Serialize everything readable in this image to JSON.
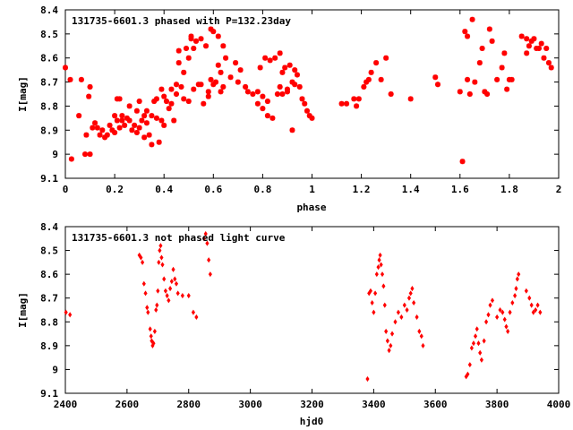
{
  "colors": {
    "points": "#ff0000"
  },
  "chart_data": [
    {
      "type": "scatter",
      "title": "131735-6601.3 phased with P=132.23day",
      "xlabel": "phase",
      "ylabel": "I[mag]",
      "xlim": [
        0,
        2
      ],
      "ylim": [
        9.1,
        8.4
      ],
      "y_inverted": true,
      "grid": false,
      "xticks": [
        0,
        0.2,
        0.4,
        0.6,
        0.8,
        1,
        1.2,
        1.4,
        1.6,
        1.8,
        2
      ],
      "xtick_labels": [
        "0",
        "0.2",
        "0.4",
        "0.6",
        "0.8",
        "1",
        "1.2",
        "1.4",
        "1.6",
        "1.8",
        "2"
      ],
      "yticks": [
        8.4,
        8.5,
        8.6,
        8.7,
        8.8,
        8.9,
        9,
        9.1
      ],
      "ytick_labels": [
        "8.4",
        "8.5",
        "8.6",
        "8.7",
        "8.8",
        "8.9",
        "9",
        "9.1"
      ],
      "marker": "star",
      "points": [
        [
          0.0,
          8.64
        ],
        [
          0.02,
          8.69
        ],
        [
          0.025,
          9.02
        ],
        [
          0.055,
          8.84
        ],
        [
          0.065,
          8.69
        ],
        [
          0.08,
          9.0
        ],
        [
          0.085,
          8.92
        ],
        [
          0.095,
          8.76
        ],
        [
          0.1,
          8.72
        ],
        [
          0.1,
          9.0
        ],
        [
          0.11,
          8.89
        ],
        [
          0.12,
          8.87
        ],
        [
          0.13,
          8.89
        ],
        [
          0.14,
          8.92
        ],
        [
          0.15,
          8.9
        ],
        [
          0.16,
          8.93
        ],
        [
          0.17,
          8.92
        ],
        [
          0.18,
          8.88
        ],
        [
          0.19,
          8.9
        ],
        [
          0.2,
          8.91
        ],
        [
          0.2,
          8.84
        ],
        [
          0.21,
          8.77
        ],
        [
          0.21,
          8.86
        ],
        [
          0.22,
          8.89
        ],
        [
          0.22,
          8.77
        ],
        [
          0.23,
          8.86
        ],
        [
          0.23,
          8.84
        ],
        [
          0.24,
          8.88
        ],
        [
          0.25,
          8.85
        ],
        [
          0.26,
          8.86
        ],
        [
          0.26,
          8.8
        ],
        [
          0.27,
          8.9
        ],
        [
          0.28,
          8.88
        ],
        [
          0.29,
          8.91
        ],
        [
          0.29,
          8.82
        ],
        [
          0.3,
          8.89
        ],
        [
          0.3,
          8.78
        ],
        [
          0.31,
          8.86
        ],
        [
          0.32,
          8.84
        ],
        [
          0.32,
          8.93
        ],
        [
          0.33,
          8.82
        ],
        [
          0.33,
          8.87
        ],
        [
          0.34,
          8.92
        ],
        [
          0.35,
          8.84
        ],
        [
          0.35,
          8.96
        ],
        [
          0.36,
          8.78
        ],
        [
          0.37,
          8.85
        ],
        [
          0.37,
          8.77
        ],
        [
          0.38,
          8.95
        ],
        [
          0.39,
          8.73
        ],
        [
          0.39,
          8.86
        ],
        [
          0.4,
          8.76
        ],
        [
          0.4,
          8.88
        ],
        [
          0.41,
          8.78
        ],
        [
          0.42,
          8.81
        ],
        [
          0.43,
          8.73
        ],
        [
          0.43,
          8.79
        ],
        [
          0.44,
          8.86
        ],
        [
          0.45,
          8.75
        ],
        [
          0.45,
          8.71
        ],
        [
          0.46,
          8.62
        ],
        [
          0.46,
          8.57
        ],
        [
          0.47,
          8.72
        ],
        [
          0.48,
          8.66
        ],
        [
          0.48,
          8.77
        ],
        [
          0.49,
          8.56
        ],
        [
          0.5,
          8.78
        ],
        [
          0.5,
          8.6
        ],
        [
          0.51,
          8.52
        ],
        [
          0.51,
          8.51
        ],
        [
          0.52,
          8.73
        ],
        [
          0.52,
          8.56
        ],
        [
          0.53,
          8.53
        ],
        [
          0.54,
          8.71
        ],
        [
          0.55,
          8.52
        ],
        [
          0.55,
          8.71
        ],
        [
          0.56,
          8.79
        ],
        [
          0.57,
          8.55
        ],
        [
          0.58,
          8.74
        ],
        [
          0.58,
          8.76
        ],
        [
          0.59,
          8.48
        ],
        [
          0.59,
          8.69
        ],
        [
          0.6,
          8.49
        ],
        [
          0.6,
          8.71
        ],
        [
          0.61,
          8.7
        ],
        [
          0.62,
          8.51
        ],
        [
          0.62,
          8.63
        ],
        [
          0.63,
          8.74
        ],
        [
          0.63,
          8.66
        ],
        [
          0.64,
          8.55
        ],
        [
          0.64,
          8.72
        ],
        [
          0.65,
          8.6
        ],
        [
          0.67,
          8.68
        ],
        [
          0.69,
          8.62
        ],
        [
          0.7,
          8.7
        ],
        [
          0.71,
          8.65
        ],
        [
          0.73,
          8.72
        ],
        [
          0.74,
          8.74
        ],
        [
          0.76,
          8.75
        ],
        [
          0.78,
          8.79
        ],
        [
          0.78,
          8.74
        ],
        [
          0.79,
          8.64
        ],
        [
          0.8,
          8.76
        ],
        [
          0.8,
          8.81
        ],
        [
          0.81,
          8.6
        ],
        [
          0.82,
          8.84
        ],
        [
          0.82,
          8.78
        ],
        [
          0.83,
          8.61
        ],
        [
          0.84,
          8.85
        ],
        [
          0.85,
          8.6
        ],
        [
          0.86,
          8.75
        ],
        [
          0.87,
          8.72
        ],
        [
          0.87,
          8.58
        ],
        [
          0.88,
          8.75
        ],
        [
          0.88,
          8.66
        ],
        [
          0.89,
          8.64
        ],
        [
          0.9,
          8.73
        ],
        [
          0.9,
          8.74
        ],
        [
          0.91,
          8.63
        ],
        [
          0.92,
          8.7
        ],
        [
          0.92,
          8.9
        ],
        [
          0.93,
          8.71
        ],
        [
          0.93,
          8.65
        ],
        [
          0.94,
          8.67
        ],
        [
          0.95,
          8.72
        ],
        [
          0.96,
          8.77
        ],
        [
          0.97,
          8.79
        ],
        [
          0.98,
          8.82
        ],
        [
          0.99,
          8.84
        ],
        [
          1.0,
          8.85
        ],
        [
          1.12,
          8.79
        ],
        [
          1.14,
          8.79
        ],
        [
          1.17,
          8.77
        ],
        [
          1.18,
          8.8
        ],
        [
          1.19,
          8.77
        ],
        [
          1.21,
          8.72
        ],
        [
          1.22,
          8.7
        ],
        [
          1.23,
          8.69
        ],
        [
          1.24,
          8.66
        ],
        [
          1.26,
          8.62
        ],
        [
          1.28,
          8.69
        ],
        [
          1.3,
          8.6
        ],
        [
          1.32,
          8.75
        ],
        [
          1.4,
          8.77
        ],
        [
          1.5,
          8.68
        ],
        [
          1.51,
          8.71
        ],
        [
          1.6,
          8.74
        ],
        [
          1.61,
          9.03
        ],
        [
          1.62,
          8.49
        ],
        [
          1.63,
          8.51
        ],
        [
          1.63,
          8.69
        ],
        [
          1.64,
          8.75
        ],
        [
          1.65,
          8.44
        ],
        [
          1.66,
          8.7
        ],
        [
          1.68,
          8.62
        ],
        [
          1.69,
          8.56
        ],
        [
          1.7,
          8.74
        ],
        [
          1.71,
          8.75
        ],
        [
          1.72,
          8.48
        ],
        [
          1.73,
          8.53
        ],
        [
          1.75,
          8.69
        ],
        [
          1.77,
          8.64
        ],
        [
          1.78,
          8.58
        ],
        [
          1.79,
          8.73
        ],
        [
          1.8,
          8.69
        ],
        [
          1.81,
          8.69
        ],
        [
          1.85,
          8.51
        ],
        [
          1.87,
          8.52
        ],
        [
          1.87,
          8.58
        ],
        [
          1.88,
          8.55
        ],
        [
          1.89,
          8.53
        ],
        [
          1.9,
          8.52
        ],
        [
          1.91,
          8.56
        ],
        [
          1.92,
          8.56
        ],
        [
          1.93,
          8.54
        ],
        [
          1.94,
          8.6
        ],
        [
          1.95,
          8.56
        ],
        [
          1.96,
          8.62
        ],
        [
          1.97,
          8.64
        ]
      ]
    },
    {
      "type": "scatter",
      "title": "131735-6601.3 not phased light curve",
      "xlabel": "hjd0",
      "ylabel": "I[mag]",
      "xlim": [
        2400,
        4000
      ],
      "ylim": [
        9.1,
        8.4
      ],
      "y_inverted": true,
      "grid": false,
      "xticks": [
        2400,
        2600,
        2800,
        3000,
        3200,
        3400,
        3600,
        3800,
        4000
      ],
      "xtick_labels": [
        "2400",
        "2600",
        "2800",
        "3000",
        "3200",
        "3400",
        "3600",
        "3800",
        "4000"
      ],
      "yticks": [
        8.4,
        8.5,
        8.6,
        8.7,
        8.8,
        8.9,
        9,
        9.1
      ],
      "ytick_labels": [
        "8.4",
        "8.5",
        "8.6",
        "8.7",
        "8.8",
        "8.9",
        "9",
        "9.1"
      ],
      "marker": "diamond",
      "points": [
        [
          2402,
          8.76
        ],
        [
          2415,
          8.77
        ],
        [
          2640,
          8.52
        ],
        [
          2645,
          8.53
        ],
        [
          2650,
          8.55
        ],
        [
          2655,
          8.64
        ],
        [
          2660,
          8.68
        ],
        [
          2665,
          8.74
        ],
        [
          2668,
          8.76
        ],
        [
          2675,
          8.83
        ],
        [
          2678,
          8.86
        ],
        [
          2680,
          8.88
        ],
        [
          2683,
          8.9
        ],
        [
          2686,
          8.89
        ],
        [
          2690,
          8.84
        ],
        [
          2694,
          8.75
        ],
        [
          2697,
          8.73
        ],
        [
          2700,
          8.67
        ],
        [
          2703,
          8.55
        ],
        [
          2706,
          8.5
        ],
        [
          2709,
          8.48
        ],
        [
          2712,
          8.53
        ],
        [
          2715,
          8.56
        ],
        [
          2720,
          8.62
        ],
        [
          2725,
          8.67
        ],
        [
          2730,
          8.69
        ],
        [
          2735,
          8.71
        ],
        [
          2740,
          8.66
        ],
        [
          2745,
          8.63
        ],
        [
          2750,
          8.58
        ],
        [
          2755,
          8.62
        ],
        [
          2760,
          8.64
        ],
        [
          2765,
          8.68
        ],
        [
          2780,
          8.69
        ],
        [
          2800,
          8.69
        ],
        [
          2815,
          8.76
        ],
        [
          2825,
          8.78
        ],
        [
          2850,
          8.45
        ],
        [
          2855,
          8.43
        ],
        [
          2860,
          8.47
        ],
        [
          2865,
          8.54
        ],
        [
          2870,
          8.6
        ],
        [
          3380,
          9.04
        ],
        [
          3385,
          8.68
        ],
        [
          3390,
          8.67
        ],
        [
          3395,
          8.72
        ],
        [
          3400,
          8.76
        ],
        [
          3405,
          8.68
        ],
        [
          3410,
          8.6
        ],
        [
          3415,
          8.57
        ],
        [
          3418,
          8.54
        ],
        [
          3421,
          8.52
        ],
        [
          3424,
          8.56
        ],
        [
          3428,
          8.6
        ],
        [
          3432,
          8.65
        ],
        [
          3436,
          8.73
        ],
        [
          3440,
          8.84
        ],
        [
          3445,
          8.88
        ],
        [
          3450,
          8.92
        ],
        [
          3455,
          8.9
        ],
        [
          3460,
          8.85
        ],
        [
          3470,
          8.8
        ],
        [
          3480,
          8.76
        ],
        [
          3490,
          8.78
        ],
        [
          3500,
          8.73
        ],
        [
          3508,
          8.75
        ],
        [
          3515,
          8.7
        ],
        [
          3520,
          8.68
        ],
        [
          3525,
          8.66
        ],
        [
          3530,
          8.72
        ],
        [
          3540,
          8.78
        ],
        [
          3548,
          8.84
        ],
        [
          3555,
          8.86
        ],
        [
          3560,
          8.9
        ],
        [
          3700,
          9.03
        ],
        [
          3705,
          9.02
        ],
        [
          3712,
          8.98
        ],
        [
          3718,
          8.91
        ],
        [
          3724,
          8.89
        ],
        [
          3730,
          8.86
        ],
        [
          3735,
          8.83
        ],
        [
          3740,
          8.89
        ],
        [
          3745,
          8.93
        ],
        [
          3750,
          8.96
        ],
        [
          3758,
          8.88
        ],
        [
          3765,
          8.8
        ],
        [
          3772,
          8.77
        ],
        [
          3778,
          8.73
        ],
        [
          3785,
          8.71
        ],
        [
          3800,
          8.78
        ],
        [
          3810,
          8.75
        ],
        [
          3818,
          8.76
        ],
        [
          3825,
          8.79
        ],
        [
          3830,
          8.82
        ],
        [
          3835,
          8.84
        ],
        [
          3842,
          8.76
        ],
        [
          3850,
          8.72
        ],
        [
          3858,
          8.69
        ],
        [
          3862,
          8.66
        ],
        [
          3866,
          8.62
        ],
        [
          3870,
          8.6
        ],
        [
          3895,
          8.67
        ],
        [
          3905,
          8.7
        ],
        [
          3912,
          8.73
        ],
        [
          3918,
          8.76
        ],
        [
          3925,
          8.75
        ],
        [
          3932,
          8.73
        ],
        [
          3940,
          8.76
        ]
      ]
    }
  ]
}
